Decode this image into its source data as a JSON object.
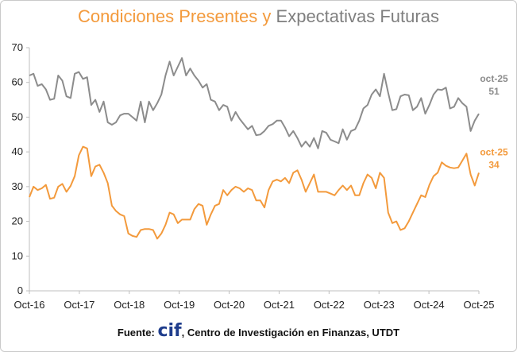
{
  "chart_data": {
    "type": "line",
    "title": {
      "part1": "Condiciones Presentes",
      "part2": "y",
      "part3": "Expectativas Futuras"
    },
    "ylim": [
      0,
      70
    ],
    "yticks": [
      0,
      10,
      20,
      30,
      40,
      50,
      60,
      70
    ],
    "xticks": [
      "Oct-16",
      "Oct-17",
      "Oct-18",
      "Oct-19",
      "Oct-20",
      "Oct-21",
      "Oct-22",
      "Oct-23",
      "Oct-24",
      "Oct-25"
    ],
    "grid": false,
    "colors": {
      "present": "#f39a3c",
      "future": "#8c8c8c",
      "axis": "#bfbfbf"
    },
    "series": [
      {
        "name": "Expectativas Futuras",
        "color": "#8c8c8c",
        "end_label": "oct-25",
        "end_value": "51",
        "values": [
          62,
          62.5,
          59,
          59.5,
          58,
          55,
          55.3,
          62,
          60.5,
          56,
          55.5,
          62.5,
          63,
          61,
          61.5,
          53.5,
          55,
          51.5,
          54.5,
          48.5,
          47.8,
          48.5,
          50.5,
          51,
          51,
          50,
          49,
          54.5,
          48.5,
          54.5,
          52,
          54,
          56.5,
          62,
          66,
          62,
          64.5,
          67,
          62,
          64,
          62,
          60.5,
          58.5,
          59.5,
          55,
          54.5,
          52,
          53.5,
          53,
          49,
          51.5,
          49.5,
          48,
          46.5,
          47.5,
          44.8,
          45,
          46,
          47.5,
          48,
          49,
          49,
          47,
          44.5,
          46,
          44,
          41.5,
          43,
          41.5,
          44,
          41,
          46,
          45.5,
          43.5,
          43,
          42.5,
          46.5,
          43.5,
          46,
          46.5,
          49,
          52.5,
          53.5,
          56.5,
          58,
          56,
          62.5,
          57,
          52,
          52.3,
          56,
          56.5,
          56.3,
          52,
          53,
          55.5,
          51,
          53.5,
          56.5,
          58,
          57.8,
          58.5,
          52.5,
          53,
          55.5,
          54,
          53,
          46,
          49,
          51
        ]
      },
      {
        "name": "Condiciones Presentes",
        "color": "#f39a3c",
        "end_label": "oct-25",
        "end_value": "34",
        "values": [
          27,
          30,
          29,
          29.5,
          30.5,
          26.5,
          26.8,
          30,
          30.8,
          28.5,
          30.2,
          33,
          39,
          41.5,
          41,
          33,
          35.8,
          36.3,
          34,
          31,
          24.5,
          23,
          22,
          21.5,
          16.5,
          15.8,
          15.5,
          17.5,
          17.8,
          17.8,
          17.5,
          15,
          16.5,
          19,
          22.5,
          22,
          19.5,
          20.5,
          20.5,
          20.5,
          23.5,
          25,
          24.5,
          19,
          22,
          24.5,
          25,
          29,
          27.5,
          29,
          30,
          29.5,
          28.5,
          29.5,
          29,
          26,
          26,
          24,
          29,
          31.5,
          32,
          31.5,
          32.5,
          31,
          34,
          34.7,
          32,
          28.5,
          31,
          33.5,
          28.5,
          28.5,
          28.5,
          28,
          27.5,
          29,
          30.3,
          29,
          30.3,
          27.5,
          27.5,
          31,
          33.5,
          32.5,
          29.5,
          34,
          32.5,
          22.5,
          19.5,
          20,
          17.5,
          18,
          20,
          22.5,
          25,
          27.5,
          27,
          30.5,
          33,
          34,
          37,
          36,
          35.5,
          35.3,
          35.5,
          37.5,
          39.5,
          33.5,
          30.3,
          34
        ]
      }
    ]
  },
  "source": {
    "prefix": "Fuente:",
    "logo": "cif",
    "text": ", Centro de Investigación en Finanzas, UTDT"
  }
}
